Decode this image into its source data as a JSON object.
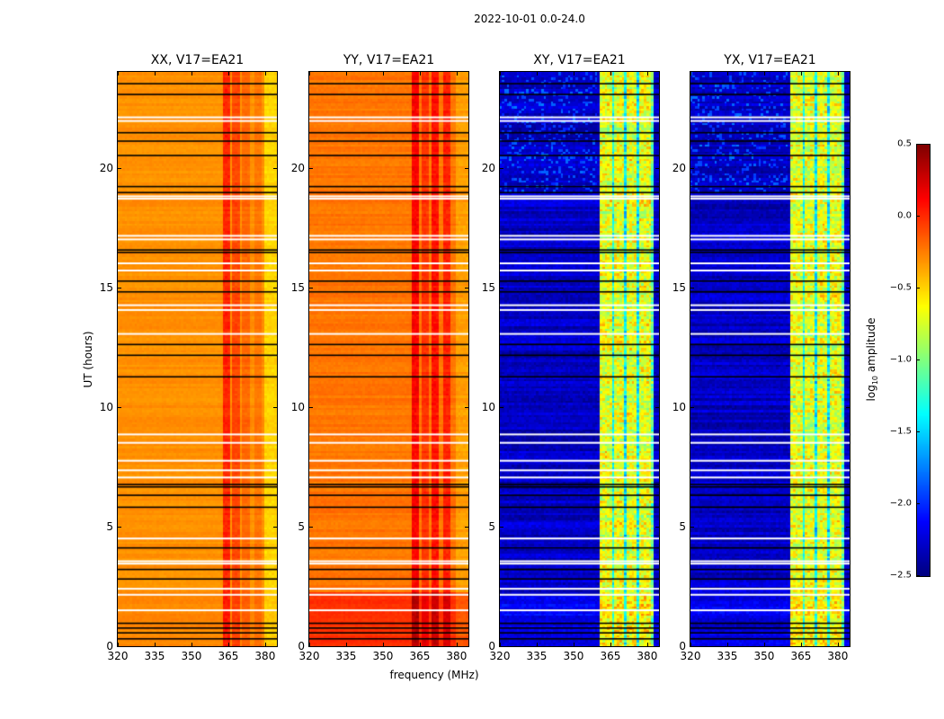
{
  "chart_data": {
    "type": "heatmap",
    "title": "2022-10-01 0.0-24.0",
    "xlabel": "frequency (MHz)",
    "ylabel": "UT (hours)",
    "xlim": [
      320,
      384.8
    ],
    "ylim": [
      0,
      24
    ],
    "xticks": [
      "320",
      "335",
      "350",
      "365",
      "380"
    ],
    "xtick_values": [
      320,
      335,
      350,
      365,
      380
    ],
    "yticks": [
      "0",
      "5",
      "10",
      "15",
      "20"
    ],
    "ytick_values": [
      0,
      5,
      10,
      15,
      20
    ],
    "colorbar": {
      "label": "log10 amplitude",
      "label_main": "log",
      "label_sub": "10",
      "label_rest": " amplitude",
      "colormap": "jet",
      "range": [
        -2.5,
        0.5
      ],
      "ticks": [
        "0.5",
        "0.0",
        "−0.5",
        "−1.0",
        "−1.5",
        "−2.0",
        "−2.5"
      ],
      "tick_values": [
        0.5,
        0.0,
        -0.5,
        -1.0,
        -1.5,
        -2.0,
        -2.5
      ]
    },
    "flagged_hours_white": [
      22.1,
      21.95,
      18.8,
      18.7,
      17.15,
      17.0,
      16.0,
      15.7,
      14.25,
      14.05,
      13.05,
      8.85,
      8.5,
      7.75,
      7.35,
      7.05,
      4.5,
      3.55,
      3.45,
      2.4,
      2.15,
      1.5
    ],
    "flagged_hours_black": [
      23.5,
      23.05,
      21.45,
      21.1,
      20.5,
      19.2,
      18.95,
      16.55,
      16.45,
      15.25,
      14.8,
      12.6,
      12.15,
      11.25,
      6.75,
      6.65,
      6.3,
      5.8,
      4.1,
      3.2,
      2.8,
      0.95,
      0.75,
      0.55,
      0.3
    ],
    "panels": [
      {
        "title": "XX, V17=EA21",
        "base": -0.3,
        "noise": 0.04,
        "early_hours_offset": 0.02,
        "bands": [
          [
            362.5,
            366,
            0.32
          ],
          [
            366.5,
            369.5,
            0.22
          ],
          [
            370.5,
            374,
            0.12
          ],
          [
            375.5,
            378.5,
            0.08
          ],
          [
            380,
            384.8,
            -0.2
          ]
        ],
        "stripes": []
      },
      {
        "title": "YY, V17=EA21",
        "base": -0.22,
        "noise": 0.05,
        "early_hours_offset": 0.2,
        "bands": [
          [
            362,
            365,
            0.35
          ],
          [
            366,
            369,
            0.2
          ],
          [
            370,
            373,
            0.3
          ],
          [
            375,
            378,
            0.25
          ],
          [
            380,
            384.8,
            -0.12
          ]
        ],
        "stripes": []
      },
      {
        "title": "XY, V17=EA21",
        "base": -2.3,
        "noise": 0.15,
        "early_hours_offset": 0.1,
        "bands": [
          [
            361,
            383,
            1.6
          ]
        ],
        "stripes": [
          [
            365.5,
            366.5,
            -0.6
          ],
          [
            370.5,
            371.5,
            -0.7
          ],
          [
            376,
            377,
            -0.7
          ],
          [
            382,
            383,
            -0.4
          ]
        ]
      },
      {
        "title": "YX, V17=EA21",
        "base": -2.3,
        "noise": 0.15,
        "early_hours_offset": 0.1,
        "bands": [
          [
            361,
            383,
            1.6
          ]
        ],
        "stripes": [
          [
            365.5,
            366.5,
            -0.6
          ],
          [
            370.5,
            371.5,
            -0.7
          ],
          [
            376,
            377,
            -0.7
          ],
          [
            382,
            383,
            -0.4
          ]
        ]
      }
    ]
  }
}
